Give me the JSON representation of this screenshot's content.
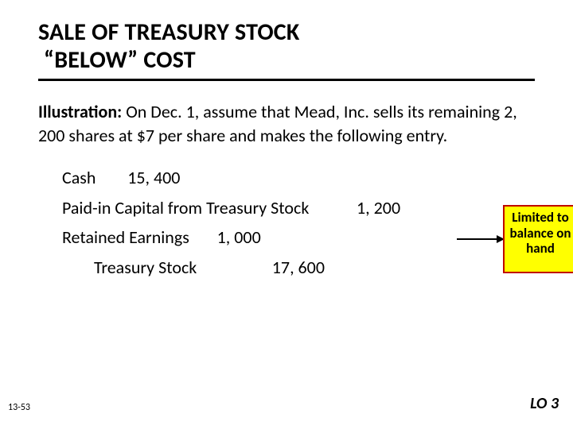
{
  "title_line1": "SALE OF TREASURY STOCK",
  "title_line2": "“BELOW”  COST",
  "illustration_label": "Illustration:",
  "illustration_text": "  On Dec. 1, assume that Mead, Inc. sells its remaining 2, 200 shares at $7 per share and makes the following entry.",
  "journal": {
    "rows": [
      {
        "indent": 0,
        "account": "Cash",
        "gap": "        ",
        "amount": "15, 400"
      },
      {
        "indent": 0,
        "account": "Paid-in Capital from Treasury Stock",
        "gap": "            ",
        "amount": "1, 200"
      },
      {
        "indent": 0,
        "account": "Retained Earnings",
        "gap": "       ",
        "amount": "1, 000"
      },
      {
        "indent": 1,
        "account": "Treasury Stock",
        "gap": "                   ",
        "amount": "17, 600"
      }
    ]
  },
  "callout": {
    "text": "Limited to balance on hand",
    "background_color": "#ffff00",
    "border_color": "#c00000"
  },
  "page_number": "13-53",
  "learning_obj": "LO 3",
  "colors": {
    "text": "#000000",
    "background": "#ffffff"
  },
  "fontsizes": {
    "title": 30,
    "body": 22,
    "callout": 17,
    "pagenum": 12,
    "lo": 20
  }
}
